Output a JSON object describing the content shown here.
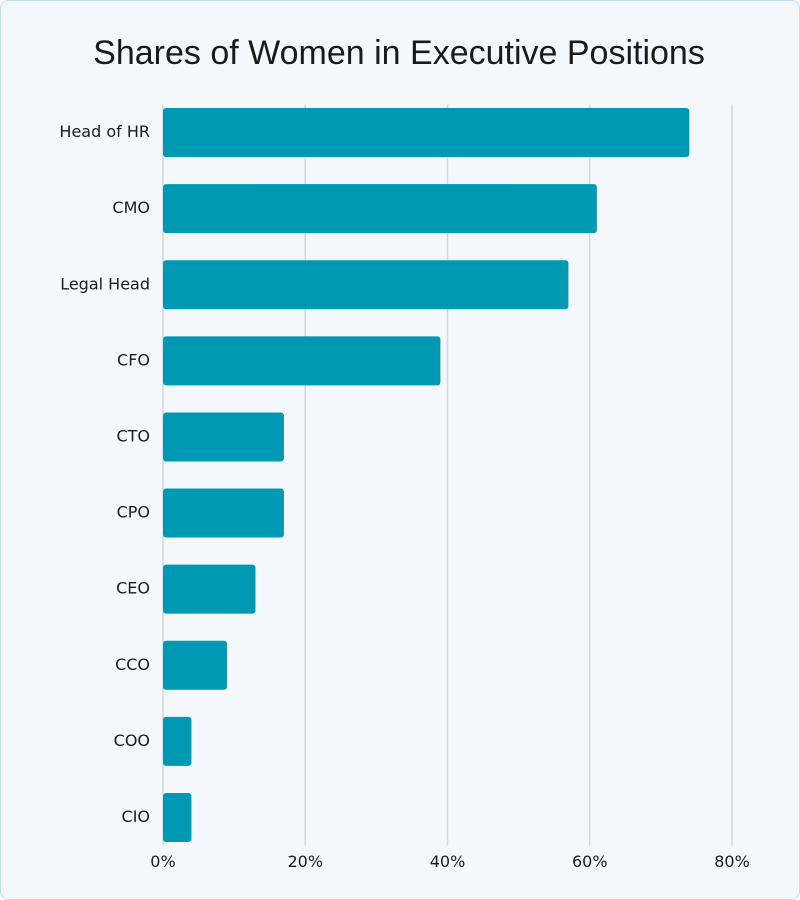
{
  "chart_data": {
    "type": "bar",
    "orientation": "horizontal",
    "title": "Shares of Women in Executive Positions",
    "categories": [
      "Head of HR",
      "CMO",
      "Legal Head",
      "CFO",
      "CTO",
      "CPO",
      "CEO",
      "CCO",
      "COO",
      "CIO"
    ],
    "values": [
      74,
      61,
      57,
      39,
      17,
      17,
      13,
      9,
      4,
      4
    ],
    "color": "#0099b3",
    "xlim": [
      0,
      80
    ],
    "xticks": [
      {
        "value": 0,
        "label": "0%"
      },
      {
        "value": 20,
        "label": "20%"
      },
      {
        "value": 40,
        "label": "40%"
      },
      {
        "value": 60,
        "label": "60%"
      },
      {
        "value": 80,
        "label": "80%"
      }
    ],
    "grid": true
  }
}
